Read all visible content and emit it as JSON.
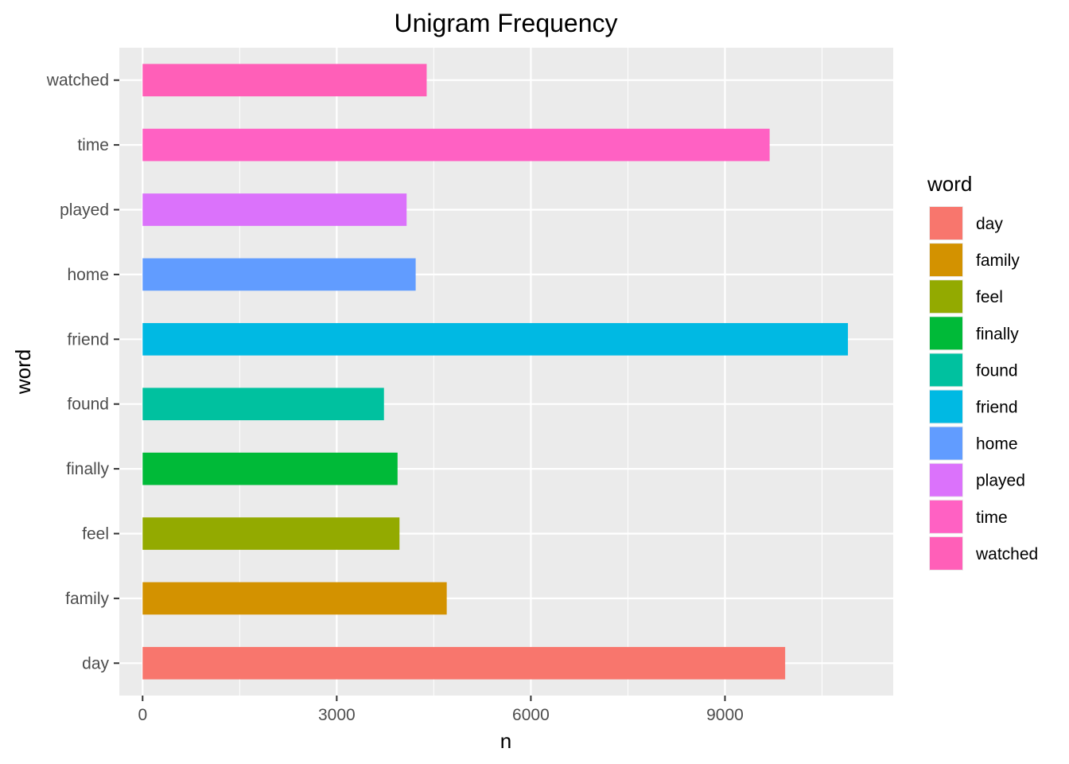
{
  "chart_data": {
    "type": "bar",
    "orientation": "horizontal",
    "title": "Unigram Frequency",
    "xlabel": "n",
    "ylabel": "word",
    "categories": [
      "day",
      "family",
      "feel",
      "finally",
      "found",
      "friend",
      "home",
      "played",
      "time",
      "watched"
    ],
    "values": [
      9930,
      4700,
      3970,
      3940,
      3730,
      10900,
      4220,
      4080,
      9690,
      4390
    ],
    "xlim": [
      -360,
      11600
    ],
    "xticks": [
      "0",
      "3000",
      "6000",
      "9000"
    ],
    "xtick_values": [
      0,
      3000,
      6000,
      9000
    ],
    "minor_xtick_values": [
      1500,
      4500,
      7500,
      10500
    ],
    "grid": true,
    "legend": {
      "title": "word",
      "placement": "right",
      "entries": [
        "day",
        "family",
        "feel",
        "finally",
        "found",
        "friend",
        "home",
        "played",
        "time",
        "watched"
      ]
    },
    "colors": [
      "#F8766D",
      "#D39200",
      "#93AA00",
      "#00BA38",
      "#00C19F",
      "#00B9E3",
      "#619CFF",
      "#DB72FB",
      "#FF61C3",
      "#FF5FB8"
    ],
    "panel_background": "#EBEBEB",
    "grid_color": "#FFFFFF"
  }
}
